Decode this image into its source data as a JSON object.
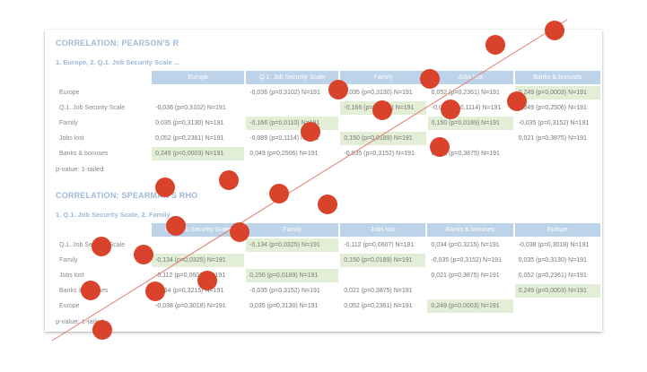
{
  "pearson": {
    "title": "CORRELATION: PEARSON'S R",
    "subtitle": "1. Europe, 2. Q.1. Job Security Scale ...",
    "columns": [
      "Europe",
      "Q.1. Job Security Scale",
      "Family",
      "Jobs lost",
      "Banks & bonuses"
    ],
    "rows": [
      {
        "label": "Europe",
        "cells": [
          "",
          "-0,036 (p=0,3102) N=191",
          "0,035 (p=0,3130) N=191",
          "0,052 (p=0,2361) N=191",
          "0,249 (p=0,0003) N=191"
        ]
      },
      {
        "label": "Q.1. Job Security Scale",
        "cells": [
          "-0,036 (p=0,3102) N=191",
          "",
          "-0,166 (p=0,0110) N=191",
          "-0,089 (p=0,1114) N=191",
          "0,049 (p=0,2506) N=191"
        ]
      },
      {
        "label": "Family",
        "cells": [
          "0,035 (p=0,3130) N=191",
          "-0,166 (p=0,0110) N=191",
          "",
          "0,150 (p=0,0189) N=191",
          "-0,035 (p=0,3152) N=191"
        ]
      },
      {
        "label": "Jobs lost",
        "cells": [
          "0,052 (p=0,2361) N=191",
          "-0,089 (p=0,1114) N=191",
          "0,150 (p=0,0189) N=191",
          "",
          "0,021 (p=0,3875) N=191"
        ]
      },
      {
        "label": "Banks & bonuses",
        "cells": [
          "0,249 (p=0,0003) N=191",
          "0,049 (p=0,2506) N=191",
          "-0,035 (p=0,3152) N=191",
          "0,021 (p=0,3875) N=191",
          ""
        ]
      }
    ],
    "highlight": [
      [
        0,
        4
      ],
      [
        1,
        2
      ],
      [
        2,
        1
      ],
      [
        2,
        3
      ],
      [
        3,
        2
      ],
      [
        4,
        0
      ]
    ],
    "note": "p-value: 1-tailed"
  },
  "spearman": {
    "title": "CORRELATION: SPEARMAN'S RHO",
    "subtitle": "1. Q.1. Job Security Scale, 2. Family ...",
    "columns": [
      "Q.1. Job Security Scale",
      "Family",
      "Jobs lost",
      "Banks & bonuses",
      "Europe"
    ],
    "rows": [
      {
        "label": "Q.1. Job Security Scale",
        "cells": [
          "",
          "-0,134 (p=0,0325) N=191",
          "-0,112 (p=0,0607) N=191",
          "0,034 (p=0,3215) N=191",
          "-0,038 (p=0,3018) N=191"
        ]
      },
      {
        "label": "Family",
        "cells": [
          "-0,134 (p=0,0325) N=191",
          "",
          "0,150 (p=0,0189) N=191",
          "-0,035 (p=0,3152) N=191",
          "0,035 (p=0,3130) N=191"
        ]
      },
      {
        "label": "Jobs lost",
        "cells": [
          "-0,112 (p=0,0607) N=191",
          "0,150 (p=0,0189) N=191",
          "",
          "0,021 (p=0,3875) N=191",
          "0,052 (p=0,2361) N=191"
        ]
      },
      {
        "label": "Banks & bonuses",
        "cells": [
          "0,034 (p=0,3215) N=191",
          "-0,035 (p=0,3152) N=191",
          "0,021 (p=0,3875) N=191",
          "",
          "0,249 (p=0,0003) N=191"
        ]
      },
      {
        "label": "Europe",
        "cells": [
          "-0,038 (p=0,3018) N=191",
          "0,035 (p=0,3130) N=191",
          "0,052 (p=0,2361) N=191",
          "0,249 (p=0,0003) N=191",
          ""
        ]
      }
    ],
    "highlight": [
      [
        0,
        1
      ],
      [
        1,
        0
      ],
      [
        1,
        2
      ],
      [
        2,
        1
      ],
      [
        3,
        4
      ],
      [
        4,
        3
      ]
    ],
    "note": "p-value: 1-tailed"
  },
  "overlay": {
    "dot_color": "#d9432c",
    "line_color": "#e07a6a"
  }
}
